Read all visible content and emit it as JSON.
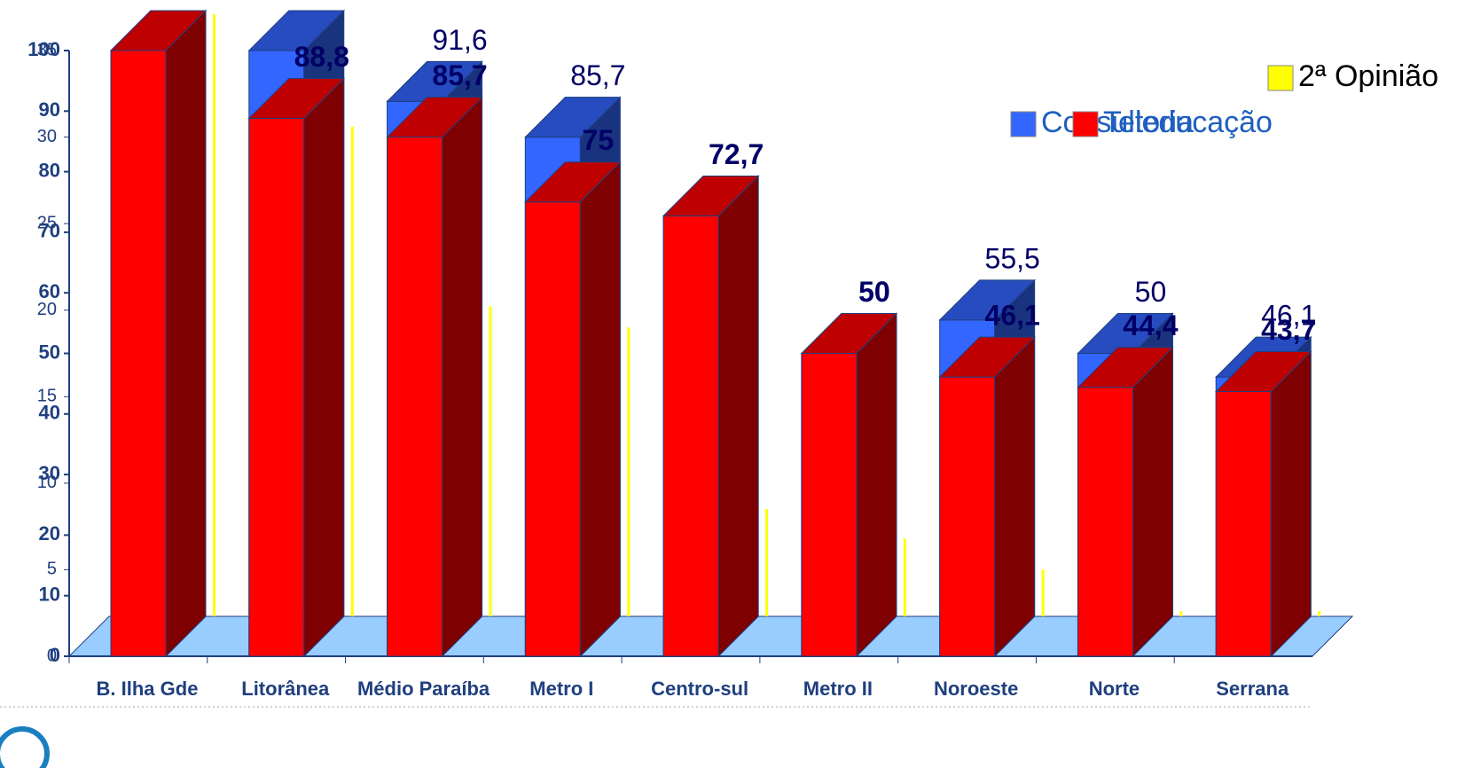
{
  "chart_data": {
    "type": "bar3d",
    "categories": [
      "B. Ilha Gde",
      "Litorânea",
      "Médio Paraíba",
      "Metro I",
      "Centro-sul",
      "Metro II",
      "Noroeste",
      "Norte",
      "Serrana"
    ],
    "ylim": [
      0,
      100
    ],
    "yticks": [
      0,
      10,
      20,
      30,
      40,
      50,
      60,
      70,
      80,
      90,
      100
    ],
    "y2lim": [
      0,
      35
    ],
    "y2ticks": [
      0,
      5,
      10,
      15,
      20,
      25,
      30,
      35
    ],
    "legend": "top-right",
    "series": [
      {
        "name": "Consultoria",
        "color": "#3366ff",
        "values": [
          100,
          100,
          91.6,
          85.7,
          72.7,
          50,
          55.5,
          50,
          46.1
        ],
        "value_labels": [
          "100",
          "100",
          "91,6",
          "85,7",
          "72,7",
          "50",
          "55,5",
          "50",
          "46,1"
        ]
      },
      {
        "name": "Teleducação",
        "color": "#ff0000",
        "values": [
          100,
          88.8,
          85.7,
          75,
          72.7,
          50,
          46.1,
          44.4,
          43.7
        ],
        "value_labels": [
          "100",
          "88,8",
          "85,7",
          "75",
          "72,7",
          "50",
          "46,1",
          "44,4",
          "43,7"
        ]
      },
      {
        "name": "2ª Opinião",
        "color": "#ffff00",
        "axis": "y2",
        "values": [
          34.8,
          28.3,
          17.9,
          16.7,
          6.2,
          4.5,
          2.7,
          0.3,
          0.3
        ]
      }
    ]
  }
}
